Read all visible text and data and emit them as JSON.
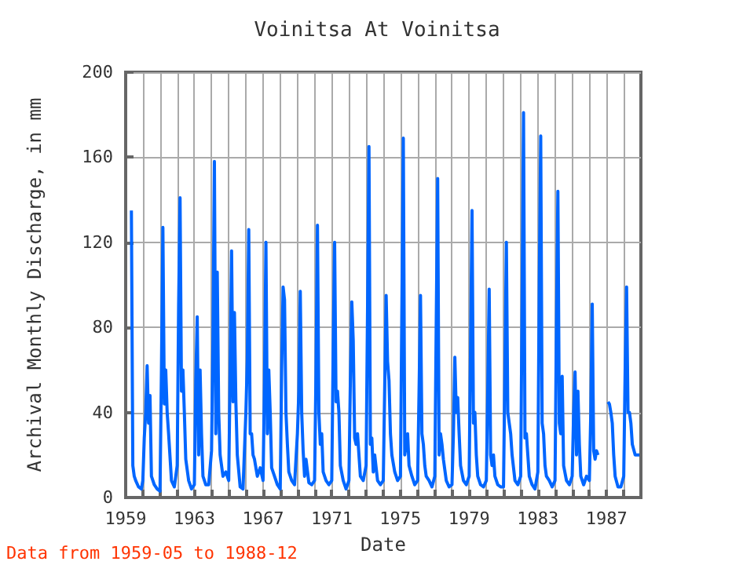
{
  "chart_data": {
    "type": "line",
    "title": "Voinitsa At Voinitsa",
    "xlabel": "Date",
    "ylabel": "Archival Monthly Discharge, in mm",
    "annotations": [
      "Data from 1959-05 to 1988-12"
    ],
    "xlim": [
      "1959",
      "1989"
    ],
    "ylim": [
      0,
      200
    ],
    "yticks": [
      0,
      40,
      80,
      120,
      160,
      200
    ],
    "xticks": [
      "1959",
      {
        "value": "1960",
        "label": null
      },
      {
        "value": "1961",
        "label": null
      },
      {
        "value": "1962",
        "label": null
      },
      "1963",
      {
        "value": "1964",
        "label": null
      },
      {
        "value": "1965",
        "label": null
      },
      {
        "value": "1966",
        "label": null
      },
      "1967",
      {
        "value": "1968",
        "label": null
      },
      {
        "value": "1969",
        "label": null
      },
      {
        "value": "1970",
        "label": null
      },
      "1971",
      {
        "value": "1972",
        "label": null
      },
      {
        "value": "1973",
        "label": null
      },
      {
        "value": "1974",
        "label": null
      },
      "1975",
      {
        "value": "1976",
        "label": null
      },
      {
        "value": "1977",
        "label": null
      },
      {
        "value": "1978",
        "label": null
      },
      "1979",
      {
        "value": "1980",
        "label": null
      },
      {
        "value": "1981",
        "label": null
      },
      {
        "value": "1982",
        "label": null
      },
      "1983",
      {
        "value": "1984",
        "label": null
      },
      {
        "value": "1985",
        "label": null
      },
      {
        "value": "1986",
        "label": null
      },
      "1987",
      {
        "value": "1988",
        "label": null
      }
    ],
    "grid": true,
    "line_style": "solid",
    "series": [
      {
        "color": "#0066ff",
        "x": [
          "1959-05",
          "1959-06",
          "1959-07",
          "1959-08",
          "1959-10",
          "1959-12",
          "1960-01",
          "1960-02",
          "1960-03",
          "1960-04",
          "1960-05",
          "1960-06",
          "1960-07",
          "1960-09",
          "1960-11",
          "1961-01",
          "1961-02",
          "1961-03",
          "1961-04",
          "1961-05",
          "1961-06",
          "1961-07",
          "1961-09",
          "1961-11",
          "1962-01",
          "1962-02",
          "1962-03",
          "1962-04",
          "1962-05",
          "1962-06",
          "1962-07",
          "1962-09",
          "1962-11",
          "1963-01",
          "1963-02",
          "1963-03",
          "1963-04",
          "1963-05",
          "1963-06",
          "1963-07",
          "1963-09",
          "1963-11",
          "1964-01",
          "1964-02",
          "1964-03",
          "1964-04",
          "1964-05",
          "1964-06",
          "1964-07",
          "1964-09",
          "1964-11",
          "1965-01",
          "1965-02",
          "1965-03",
          "1965-04",
          "1965-05",
          "1965-06",
          "1965-07",
          "1965-09",
          "1965-11",
          "1966-01",
          "1966-02",
          "1966-03",
          "1966-04",
          "1966-05",
          "1966-06",
          "1966-07",
          "1966-09",
          "1966-11",
          "1967-01",
          "1967-02",
          "1967-03",
          "1967-04",
          "1967-05",
          "1967-06",
          "1967-07",
          "1967-09",
          "1967-11",
          "1968-01",
          "1968-02",
          "1968-03",
          "1968-04",
          "1968-05",
          "1968-06",
          "1968-07",
          "1968-09",
          "1968-11",
          "1969-01",
          "1969-02",
          "1969-03",
          "1969-04",
          "1969-05",
          "1969-06",
          "1969-07",
          "1969-09",
          "1969-11",
          "1970-01",
          "1970-02",
          "1970-03",
          "1970-04",
          "1970-05",
          "1970-06",
          "1970-07",
          "1970-09",
          "1970-11",
          "1971-01",
          "1971-02",
          "1971-03",
          "1971-04",
          "1971-05",
          "1971-06",
          "1971-07",
          "1971-09",
          "1971-11",
          "1972-01",
          "1972-02",
          "1972-03",
          "1972-04",
          "1972-05",
          "1972-06",
          "1972-07",
          "1972-09",
          "1972-11",
          "1973-01",
          "1973-02",
          "1973-03",
          "1973-04",
          "1973-05",
          "1973-06",
          "1973-07",
          "1973-09",
          "1973-11",
          "1974-01",
          "1974-02",
          "1974-03",
          "1974-04",
          "1974-05",
          "1974-06",
          "1974-07",
          "1974-09",
          "1974-11",
          "1975-01",
          "1975-02",
          "1975-03",
          "1975-04",
          "1975-05",
          "1975-06",
          "1975-07",
          "1975-09",
          "1975-11",
          "1976-01",
          "1976-02",
          "1976-03",
          "1976-04",
          "1976-05",
          "1976-06",
          "1976-07",
          "1976-09",
          "1976-11",
          "1977-01",
          "1977-02",
          "1977-03",
          "1977-04",
          "1977-05",
          "1977-06",
          "1977-07",
          "1977-09",
          "1977-11",
          "1978-01",
          "1978-02",
          "1978-03",
          "1978-04",
          "1978-05",
          "1978-06",
          "1978-07",
          "1978-09",
          "1978-11",
          "1979-01",
          "1979-02",
          "1979-03",
          "1979-04",
          "1979-05",
          "1979-06",
          "1979-07",
          "1979-09",
          "1979-11",
          "1980-01",
          "1980-02",
          "1980-03",
          "1980-04",
          "1980-05",
          "1980-06",
          "1980-07",
          "1980-09",
          "1980-11",
          "1981-01",
          "1981-02",
          "1981-03",
          "1981-04",
          "1981-05",
          "1981-06",
          "1981-07",
          "1981-09",
          "1981-11",
          "1982-01",
          "1982-02",
          "1982-03",
          "1982-04",
          "1982-05",
          "1982-06",
          "1982-07",
          "1982-09",
          "1982-11",
          "1983-01",
          "1983-02",
          "1983-03",
          "1983-04",
          "1983-05",
          "1983-06",
          "1983-07",
          "1983-09",
          "1983-11",
          "1984-01",
          "1984-02",
          "1984-03",
          "1984-04",
          "1984-05",
          "1984-06",
          "1984-07",
          "1984-09",
          "1984-11",
          "1985-01",
          "1985-02",
          "1985-03",
          "1985-04",
          "1985-05",
          "1985-06",
          "1985-07",
          "1985-09",
          "1985-11",
          "1986-01",
          "1986-02",
          "1986-03",
          "1986-04",
          "1986-05",
          "1986-06",
          "1986-07",
          "1986-10",
          "1987-02",
          "1987-03",
          "1987-04",
          "1987-05",
          "1987-06",
          "1987-07",
          "1987-09",
          "1987-11",
          "1988-01",
          "1988-02",
          "1988-03",
          "1988-04",
          "1988-05",
          "1988-06",
          "1988-07",
          "1988-09",
          "1988-12"
        ],
        "values": [
          135,
          15,
          10,
          8,
          5,
          4,
          8,
          28,
          40,
          62,
          35,
          48,
          10,
          6,
          4,
          3,
          60,
          127,
          44,
          60,
          40,
          30,
          8,
          5,
          15,
          90,
          141,
          50,
          60,
          40,
          18,
          8,
          4,
          6,
          55,
          85,
          20,
          60,
          30,
          10,
          6,
          6,
          22,
          75,
          158,
          30,
          106,
          40,
          20,
          10,
          12,
          8,
          60,
          116,
          45,
          87,
          45,
          20,
          5,
          4,
          40,
          65,
          126,
          30,
          30,
          20,
          18,
          10,
          14,
          8,
          55,
          120,
          30,
          60,
          40,
          14,
          10,
          6,
          4,
          60,
          99,
          93,
          40,
          25,
          12,
          8,
          6,
          30,
          50,
          97,
          40,
          22,
          10,
          18,
          7,
          6,
          8,
          60,
          128,
          40,
          25,
          30,
          12,
          8,
          6,
          8,
          70,
          120,
          45,
          50,
          40,
          15,
          8,
          4,
          8,
          55,
          92,
          74,
          28,
          25,
          30,
          10,
          8,
          15,
          88,
          165,
          25,
          28,
          12,
          20,
          8,
          6,
          8,
          52,
          95,
          64,
          55,
          30,
          20,
          12,
          8,
          10,
          90,
          169,
          20,
          25,
          30,
          15,
          10,
          6,
          8,
          50,
          95,
          30,
          25,
          15,
          10,
          8,
          5,
          10,
          82,
          150,
          20,
          30,
          25,
          18,
          8,
          5,
          6,
          30,
          66,
          40,
          47,
          30,
          15,
          8,
          6,
          10,
          72,
          135,
          35,
          40,
          20,
          10,
          6,
          5,
          8,
          50,
          98,
          20,
          15,
          20,
          10,
          6,
          5,
          5,
          61,
          120,
          40,
          35,
          30,
          20,
          8,
          6,
          10,
          93,
          181,
          28,
          30,
          20,
          10,
          6,
          4,
          12,
          101,
          170,
          35,
          30,
          15,
          10,
          8,
          5,
          8,
          82,
          144,
          35,
          30,
          57,
          15,
          8,
          6,
          10,
          40,
          59,
          20,
          50,
          25,
          10,
          6,
          10,
          8,
          40,
          91,
          22,
          18,
          22,
          20,
          null,
          45,
          44,
          40,
          35,
          20,
          10,
          5,
          5,
          10,
          60,
          99,
          40,
          40,
          35,
          25,
          20,
          20
        ]
      }
    ]
  }
}
